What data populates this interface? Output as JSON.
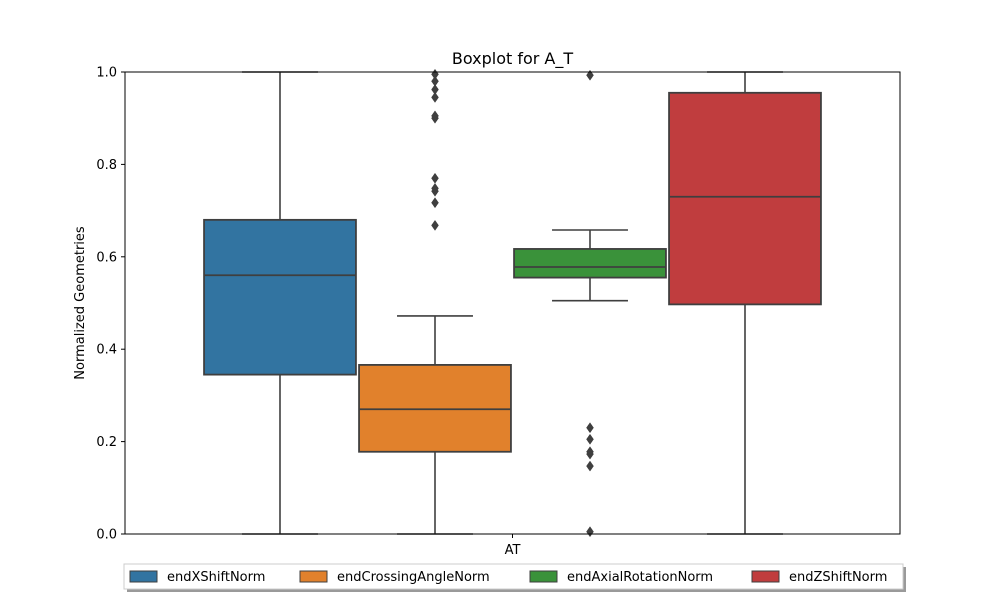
{
  "chart_data": {
    "type": "boxplot",
    "title": "Boxplot for A_T",
    "xlabel": "",
    "ylabel": "Normalized Geometries",
    "categories": [
      "AT"
    ],
    "ylim": [
      0,
      1
    ],
    "yticks": [
      "0.0",
      "0.2",
      "0.4",
      "0.6",
      "0.8",
      "1.0"
    ],
    "grid": false,
    "legend_position": "bottom-center",
    "series": [
      {
        "name": "endXShiftNorm",
        "color": "#3274a1",
        "whisker_low": 0.0,
        "q1": 0.345,
        "median": 0.56,
        "q3": 0.68,
        "whisker_high": 1.0,
        "outliers": []
      },
      {
        "name": "endCrossingAngleNorm",
        "color": "#e1812c",
        "whisker_low": 0.0,
        "q1": 0.178,
        "median": 0.27,
        "q3": 0.366,
        "whisker_high": 0.472,
        "outliers": [
          0.668,
          0.717,
          0.742,
          0.748,
          0.77,
          0.9,
          0.905,
          0.945,
          0.962,
          0.98,
          0.995
        ]
      },
      {
        "name": "endAxialRotationNorm",
        "color": "#3a923a",
        "whisker_low": 0.505,
        "q1": 0.555,
        "median": 0.578,
        "q3": 0.617,
        "whisker_high": 0.658,
        "outliers": [
          0.005,
          0.147,
          0.173,
          0.178,
          0.205,
          0.23,
          0.993
        ]
      },
      {
        "name": "endZShiftNorm",
        "color": "#c03d3e",
        "whisker_low": 0.0,
        "q1": 0.497,
        "median": 0.73,
        "q3": 0.955,
        "whisker_high": 1.0,
        "outliers": []
      }
    ]
  }
}
